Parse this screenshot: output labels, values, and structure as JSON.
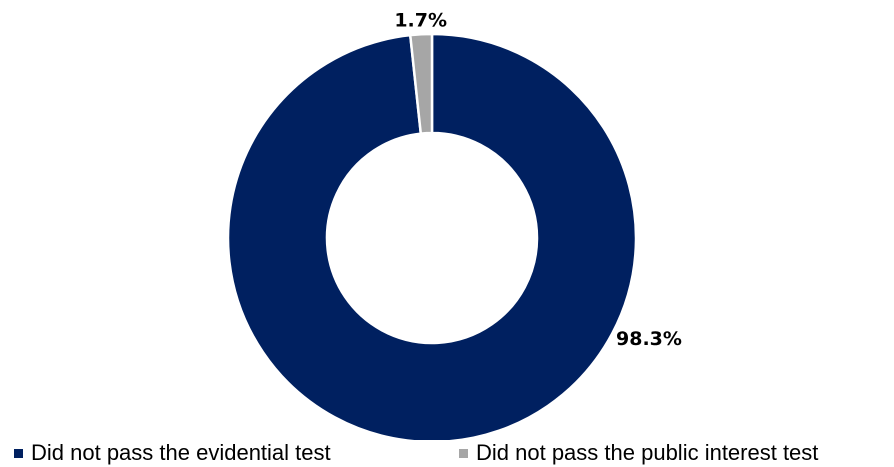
{
  "chart_data": {
    "type": "pie",
    "donut": true,
    "title": "",
    "slices": [
      {
        "label": "Did not pass the evidential test",
        "value": 98.3,
        "display": "98.3%",
        "color": "#002060"
      },
      {
        "label": "Did not pass the public interest test",
        "value": 1.7,
        "display": "1.7%",
        "color": "#A6A6A6"
      }
    ],
    "legend": {
      "position": "bottom",
      "items": [
        {
          "label": "Did not pass the evidential test",
          "color": "#002060"
        },
        {
          "label": "Did not pass the public interest test",
          "color": "#A6A6A6"
        }
      ]
    }
  }
}
